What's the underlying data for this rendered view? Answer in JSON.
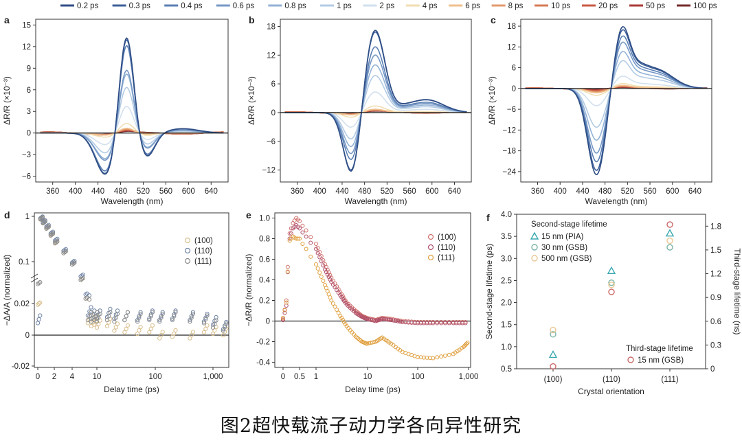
{
  "caption": "图2超快载流子动力学各向异性研究",
  "legend_top": {
    "labels": [
      "0.2 ps",
      "0.3 ps",
      "0.4 ps",
      "0.6 ps",
      "0.8 ps",
      "1 ps",
      "2 ps",
      "4 ps",
      "6 ps",
      "8 ps",
      "10 ps",
      "20 ps",
      "50 ps",
      "100 ps"
    ],
    "colors": [
      "#2f4e86",
      "#3d5f99",
      "#5a7fb4",
      "#7698c6",
      "#93b2d6",
      "#b3cbe4",
      "#d2e0ee",
      "#f1ddb2",
      "#efbf8d",
      "#e39a6c",
      "#d67a55",
      "#c85a45",
      "#a83a36",
      "#742a2c"
    ]
  },
  "chart_data": [
    {
      "panel": "a",
      "type": "line",
      "xlabel": "Wavelength (nm)",
      "ylabel": "ΔR/R (×10⁻³)",
      "xlim": [
        330,
        670
      ],
      "ylim": [
        -6.8,
        15.8
      ],
      "xticks": [
        360,
        400,
        440,
        480,
        520,
        560,
        600,
        640
      ],
      "yticks": [
        -6,
        -3,
        0,
        3,
        6,
        9,
        12,
        15
      ],
      "profile": {
        "neg_center": 455,
        "neg_width": 19,
        "neg_amp": -6.0,
        "pos_center": 490,
        "pos_width": 13,
        "pos_amp": 14.5,
        "dip_center": 525,
        "dip_width": 15,
        "dip_amp": -3.5,
        "hump_center": 590,
        "hump_width": 28,
        "hump_amp": 0.6
      },
      "curves": [
        {
          "time": "0.2 ps",
          "scale": 1.0
        },
        {
          "time": "0.3 ps",
          "scale": 0.98
        },
        {
          "time": "0.4 ps",
          "scale": 0.92
        },
        {
          "time": "0.6 ps",
          "scale": 0.66
        },
        {
          "time": "0.8 ps",
          "scale": 0.62
        },
        {
          "time": "1 ps",
          "scale": 0.48
        },
        {
          "time": "2 ps",
          "scale": 0.28
        },
        {
          "time": "4 ps",
          "scale": 0.1
        },
        {
          "time": "6 ps",
          "scale": 0.05
        },
        {
          "time": "8 ps",
          "scale": 0.04
        },
        {
          "time": "10 ps",
          "scale": 0.03
        },
        {
          "time": "20 ps",
          "scale": 0.02
        },
        {
          "time": "50 ps",
          "scale": 0.015
        },
        {
          "time": "100 ps",
          "scale": 0.01
        }
      ]
    },
    {
      "panel": "b",
      "type": "line",
      "xlabel": "Wavelength (nm)",
      "ylabel": "ΔR/R (×10⁻³)",
      "xlim": [
        330,
        670
      ],
      "ylim": [
        -14.5,
        19.5
      ],
      "xticks": [
        360,
        400,
        440,
        480,
        520,
        560,
        600,
        640
      ],
      "yticks": [
        -12,
        -6,
        0,
        6,
        12,
        18
      ],
      "profile": {
        "neg_center": 458,
        "neg_width": 15,
        "neg_amp": -13.5,
        "pos_center": 498,
        "pos_width": 18,
        "pos_amp": 17.5,
        "dip_center": 550,
        "dip_width": 15,
        "dip_amp": 0.5,
        "hump_center": 590,
        "hump_width": 30,
        "hump_amp": 2.7
      },
      "curves": [
        {
          "time": "0.2 ps",
          "scale": 1.0
        },
        {
          "time": "0.3 ps",
          "scale": 0.98
        },
        {
          "time": "0.4 ps",
          "scale": 0.8
        },
        {
          "time": "0.6 ps",
          "scale": 0.7
        },
        {
          "time": "0.8 ps",
          "scale": 0.58
        },
        {
          "time": "1 ps",
          "scale": 0.45
        },
        {
          "time": "2 ps",
          "scale": 0.25
        },
        {
          "time": "4 ps",
          "scale": 0.08
        },
        {
          "time": "6 ps",
          "scale": 0.04
        },
        {
          "time": "8 ps",
          "scale": 0.03
        },
        {
          "time": "10 ps",
          "scale": 0.02
        },
        {
          "time": "20 ps",
          "scale": 0.02
        },
        {
          "time": "50 ps",
          "scale": 0.015
        },
        {
          "time": "100 ps",
          "scale": 0.01
        }
      ]
    },
    {
      "panel": "c",
      "type": "line",
      "xlabel": "Wavelength (nm)",
      "ylabel": "ΔR/R (×10⁻³)",
      "xlim": [
        330,
        670
      ],
      "ylim": [
        -27,
        20
      ],
      "xticks": [
        360,
        400,
        440,
        480,
        520,
        560,
        600,
        640
      ],
      "yticks": [
        -24,
        -18,
        -12,
        -6,
        0,
        6,
        12,
        18
      ],
      "profile": {
        "neg_center": 465,
        "neg_width": 16,
        "neg_amp": -25,
        "pos_center": 510,
        "pos_width": 14,
        "pos_amp": 17,
        "dip_center": 540,
        "dip_width": 15,
        "dip_amp": 3,
        "hump_center": 570,
        "hump_width": 30,
        "hump_amp": 5.5
      },
      "curves": [
        {
          "time": "0.2 ps",
          "scale": 1.0
        },
        {
          "time": "0.3 ps",
          "scale": 0.95
        },
        {
          "time": "0.4 ps",
          "scale": 0.85
        },
        {
          "time": "0.6 ps",
          "scale": 0.75
        },
        {
          "time": "0.8 ps",
          "scale": 0.6
        },
        {
          "time": "1 ps",
          "scale": 0.45
        },
        {
          "time": "2 ps",
          "scale": 0.2
        },
        {
          "time": "4 ps",
          "scale": 0.08
        },
        {
          "time": "6 ps",
          "scale": 0.05
        },
        {
          "time": "8 ps",
          "scale": 0.04
        },
        {
          "time": "10 ps",
          "scale": 0.03
        },
        {
          "time": "20 ps",
          "scale": 0.02
        },
        {
          "time": "50 ps",
          "scale": 0.015
        },
        {
          "time": "100 ps",
          "scale": 0.01
        }
      ]
    },
    {
      "panel": "d",
      "type": "scatter",
      "xlabel": "Delay time (ps)",
      "ylabel": "−ΔA/A (normalized)",
      "xticks": [
        "0",
        "2",
        "4",
        "10",
        "100",
        "1,000"
      ],
      "yticks": [
        "-0.02",
        "0",
        "0.02",
        "0.1",
        "1"
      ],
      "legend": [
        "(100)",
        "(110)",
        "(111)"
      ],
      "series": [
        {
          "name": "(100)",
          "color": "#d8be8c",
          "points": [
            [
              0,
              0.02
            ],
            [
              0.3,
              0.9
            ],
            [
              0.6,
              0.78
            ],
            [
              1,
              0.62
            ],
            [
              1.5,
              0.45
            ],
            [
              2,
              0.32
            ],
            [
              3,
              0.2
            ],
            [
              4,
              0.12
            ],
            [
              5,
              0.06
            ],
            [
              6,
              0.025
            ],
            [
              7,
              0.01
            ],
            [
              8,
              0.008
            ],
            [
              9,
              0.009
            ],
            [
              10,
              0.007
            ],
            [
              15,
              0.008
            ],
            [
              20,
              0.005
            ],
            [
              30,
              0.004
            ],
            [
              50,
              0.003
            ],
            [
              80,
              0.004
            ],
            [
              120,
              0.0
            ],
            [
              200,
              0.001
            ],
            [
              400,
              0.0
            ],
            [
              700,
              0.004
            ],
            [
              1000,
              0.003
            ],
            [
              1500,
              0.002
            ]
          ]
        },
        {
          "name": "(110)",
          "color": "#6f84a6",
          "points": [
            [
              0,
              0.01
            ],
            [
              0.3,
              0.95
            ],
            [
              0.6,
              0.8
            ],
            [
              1,
              0.65
            ],
            [
              1.5,
              0.48
            ],
            [
              2,
              0.35
            ],
            [
              3,
              0.22
            ],
            [
              4,
              0.13
            ],
            [
              5,
              0.07
            ],
            [
              6,
              0.03
            ],
            [
              7,
              0.015
            ],
            [
              8,
              0.013
            ],
            [
              9,
              0.012
            ],
            [
              10,
              0.013
            ],
            [
              15,
              0.014
            ],
            [
              20,
              0.013
            ],
            [
              30,
              0.012
            ],
            [
              50,
              0.012
            ],
            [
              80,
              0.013
            ],
            [
              120,
              0.012
            ],
            [
              200,
              0.013
            ],
            [
              400,
              0.012
            ],
            [
              700,
              0.011
            ],
            [
              1000,
              0.009
            ],
            [
              1500,
              0.006
            ]
          ]
        },
        {
          "name": "(111)",
          "color": "#8c8c8c",
          "points": [
            [
              0,
              0.05
            ],
            [
              0.3,
              0.92
            ],
            [
              0.6,
              0.76
            ],
            [
              1,
              0.6
            ],
            [
              1.5,
              0.44
            ],
            [
              2,
              0.31
            ],
            [
              3,
              0.2
            ],
            [
              4,
              0.12
            ],
            [
              5,
              0.06
            ],
            [
              6,
              0.025
            ],
            [
              7,
              0.012
            ],
            [
              8,
              0.011
            ],
            [
              9,
              0.012
            ],
            [
              10,
              0.011
            ],
            [
              15,
              0.012
            ],
            [
              20,
              0.011
            ],
            [
              30,
              0.012
            ],
            [
              50,
              0.011
            ],
            [
              80,
              0.012
            ],
            [
              120,
              0.011
            ],
            [
              200,
              0.012
            ],
            [
              400,
              0.011
            ],
            [
              700,
              0.01
            ],
            [
              1000,
              0.007
            ],
            [
              1500,
              0.005
            ]
          ]
        }
      ]
    },
    {
      "panel": "e",
      "type": "scatter",
      "xlabel": "Delay time (ps)",
      "ylabel": "−ΔR/R (normalized)",
      "xticks": [
        "0",
        "0.5",
        "1",
        "10",
        "100",
        "1,000"
      ],
      "yticks": [
        "-0.4",
        "-0.2",
        "0",
        "0.2",
        "0.4",
        "0.6",
        "0.8",
        "1.0"
      ],
      "ylim": [
        -0.45,
        1.05
      ],
      "legend": [
        "(100)",
        "(110)",
        "(111)"
      ],
      "series": [
        {
          "name": "(100)",
          "color": "#cf6f6b",
          "points": [
            [
              0,
              0.02
            ],
            [
              0.1,
              0.2
            ],
            [
              0.2,
              0.85
            ],
            [
              0.3,
              0.95
            ],
            [
              0.4,
              1.0
            ],
            [
              0.5,
              0.97
            ],
            [
              0.7,
              0.88
            ],
            [
              1,
              0.75
            ],
            [
              1.5,
              0.55
            ],
            [
              2,
              0.42
            ],
            [
              3,
              0.28
            ],
            [
              4,
              0.18
            ],
            [
              6,
              0.1
            ],
            [
              8,
              0.05
            ],
            [
              10,
              0.03
            ],
            [
              15,
              0.01
            ],
            [
              20,
              0.03
            ],
            [
              30,
              0.02
            ],
            [
              50,
              0.0
            ],
            [
              100,
              -0.01
            ],
            [
              200,
              -0.01
            ],
            [
              500,
              -0.01
            ],
            [
              1000,
              -0.01
            ]
          ]
        },
        {
          "name": "(110)",
          "color": "#b0506a",
          "points": [
            [
              0,
              0.01
            ],
            [
              0.1,
              0.15
            ],
            [
              0.2,
              0.8
            ],
            [
              0.3,
              0.9
            ],
            [
              0.4,
              0.93
            ],
            [
              0.5,
              0.9
            ],
            [
              0.7,
              0.82
            ],
            [
              1,
              0.7
            ],
            [
              1.5,
              0.5
            ],
            [
              2,
              0.38
            ],
            [
              3,
              0.25
            ],
            [
              4,
              0.16
            ],
            [
              6,
              0.08
            ],
            [
              8,
              0.04
            ],
            [
              10,
              0.02
            ],
            [
              15,
              0.0
            ],
            [
              20,
              0.02
            ],
            [
              30,
              0.01
            ],
            [
              50,
              -0.01
            ],
            [
              100,
              -0.02
            ],
            [
              200,
              -0.02
            ],
            [
              500,
              -0.02
            ],
            [
              1000,
              -0.02
            ]
          ]
        },
        {
          "name": "(111)",
          "color": "#e0a040",
          "points": [
            [
              0,
              0.03
            ],
            [
              0.1,
              0.18
            ],
            [
              0.2,
              0.78
            ],
            [
              0.3,
              0.82
            ],
            [
              0.4,
              0.8
            ],
            [
              0.5,
              0.8
            ],
            [
              0.7,
              0.7
            ],
            [
              1,
              0.55
            ],
            [
              1.5,
              0.35
            ],
            [
              2,
              0.2
            ],
            [
              3,
              0.05
            ],
            [
              4,
              -0.05
            ],
            [
              6,
              -0.15
            ],
            [
              8,
              -0.2
            ],
            [
              10,
              -0.22
            ],
            [
              15,
              -0.2
            ],
            [
              20,
              -0.16
            ],
            [
              30,
              -0.22
            ],
            [
              50,
              -0.3
            ],
            [
              100,
              -0.35
            ],
            [
              200,
              -0.36
            ],
            [
              500,
              -0.32
            ],
            [
              800,
              -0.25
            ],
            [
              1000,
              -0.2
            ]
          ]
        }
      ]
    },
    {
      "panel": "f",
      "type": "scatter",
      "xlabel": "Crystal orientation",
      "ylabel_left": "Second-stage lifetime (ps)",
      "ylabel_right": "Third-stage lifetime (ns)",
      "categories": [
        "(100)",
        "(110)",
        "(111)"
      ],
      "ylim_left": [
        0.5,
        4.0
      ],
      "yticks_left": [
        "0.5",
        "1.0",
        "1.5",
        "2.0",
        "2.5",
        "3.0",
        "3.5",
        "4.0"
      ],
      "ylim_right": [
        0,
        1.95
      ],
      "yticks_right": [
        "0",
        "0.3",
        "0.6",
        "0.9",
        "1.2",
        "1.5",
        "1.8"
      ],
      "legend_title": "Second-stage lifetime",
      "legend_title2": "Third-stage lifetime",
      "series": [
        {
          "name": "15 nm (PIA)",
          "marker": "triangle",
          "color": "#3aa8b0",
          "axis": "left",
          "values": [
            0.82,
            2.72,
            3.57
          ]
        },
        {
          "name": "30 nm (GSB)",
          "marker": "circle",
          "color": "#7ab5a6",
          "axis": "left",
          "values": [
            1.28,
            2.45,
            3.25
          ]
        },
        {
          "name": "500 nm (GSB)",
          "marker": "circle",
          "color": "#e8c894",
          "axis": "left",
          "values": [
            1.38,
            2.4,
            3.4
          ]
        },
        {
          "name": "15 nm (GSB)",
          "marker": "circle",
          "color": "#cc6a6a",
          "axis": "right",
          "values": [
            0.03,
            0.97,
            1.82
          ]
        }
      ]
    }
  ]
}
